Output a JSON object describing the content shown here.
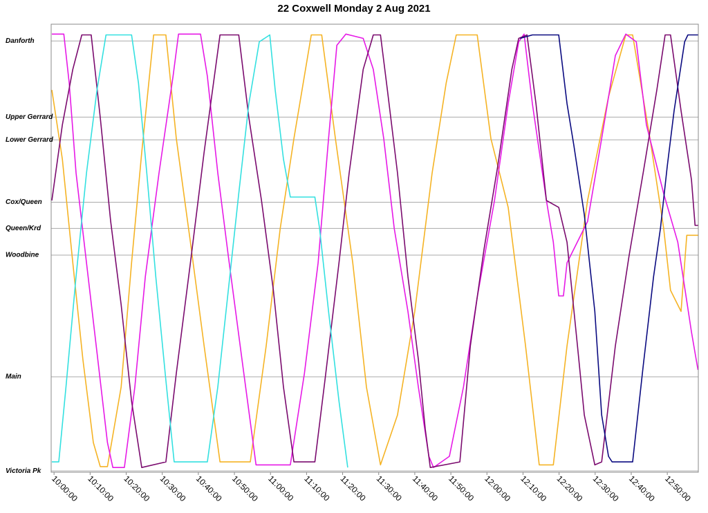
{
  "chart_data": {
    "type": "line",
    "title": "22 Coxwell Monday 2 Aug 2021",
    "xlim": [
      599.2,
      778.6
    ],
    "ylim": [
      -0.3,
      103.9
    ],
    "grid": true,
    "xticks": [
      {
        "value": 600,
        "label": "10:00:00"
      },
      {
        "value": 610,
        "label": "10:10:00"
      },
      {
        "value": 620,
        "label": "10:20:00"
      },
      {
        "value": 630,
        "label": "10:30:00"
      },
      {
        "value": 640,
        "label": "10:40:00"
      },
      {
        "value": 650,
        "label": "10:50:00"
      },
      {
        "value": 660,
        "label": "11:00:00"
      },
      {
        "value": 670,
        "label": "11:10:00"
      },
      {
        "value": 680,
        "label": "11:20:00"
      },
      {
        "value": 690,
        "label": "11:30:00"
      },
      {
        "value": 700,
        "label": "11:40:00"
      },
      {
        "value": 710,
        "label": "11:50:00"
      },
      {
        "value": 720,
        "label": "12:00:00"
      },
      {
        "value": 730,
        "label": "12:10:00"
      },
      {
        "value": 740,
        "label": "12:20:00"
      },
      {
        "value": 750,
        "label": "12:30:00"
      },
      {
        "value": 760,
        "label": "12:40:00"
      },
      {
        "value": 770,
        "label": "12:50:00"
      }
    ],
    "yticks": [
      {
        "value": 100,
        "label": "Danforth"
      },
      {
        "value": 82.3,
        "label": "Upper Gerrard"
      },
      {
        "value": 77.0,
        "label": "Lower Gerrard"
      },
      {
        "value": 62.5,
        "label": "Cox/Queen"
      },
      {
        "value": 56.4,
        "label": "Queen/Krd"
      },
      {
        "value": 50.2,
        "label": "Woodbine"
      },
      {
        "value": 21.9,
        "label": "Main"
      },
      {
        "value": 0,
        "label": "Victoria Pk"
      }
    ],
    "series": [
      {
        "color": "#f5b324",
        "x": [
          599.4,
          602.3,
          605.2,
          608.0,
          610.9,
          612.8,
          614.8,
          618.6,
          621.5,
          624.3,
          627.6,
          631.0,
          633.9,
          637.8,
          641.6,
          646.0,
          654.4,
          658.8,
          662.7,
          666.5,
          671.3,
          674.2,
          678.0,
          682.8,
          686.6,
          690.5,
          695.2,
          700.0,
          704.8,
          708.7,
          711.5,
          717.3,
          721.1,
          725.9,
          730.7,
          734.5,
          738.4,
          742.2,
          747.9,
          753.7,
          758.5,
          760.4,
          765.2,
          769.0,
          770.9,
          773.8,
          775.4,
          778.5
        ],
        "values": [
          88.6,
          72.5,
          48.4,
          25.9,
          6.6,
          1.0,
          1.0,
          19.5,
          48.4,
          74.1,
          101.4,
          101.4,
          77.3,
          53.2,
          29.1,
          2.1,
          2.1,
          29.1,
          56.4,
          77.3,
          101.4,
          101.4,
          77.3,
          48.4,
          19.5,
          1.4,
          13.0,
          37.1,
          69.3,
          90.2,
          101.4,
          101.4,
          77.3,
          61.3,
          29.1,
          1.4,
          1.4,
          29.1,
          62.9,
          87.0,
          101.4,
          101.4,
          77.3,
          56.4,
          42.0,
          37.1,
          54.8,
          54.8
        ]
      },
      {
        "color": "#e619e6",
        "x": [
          599.4,
          602.7,
          604.2,
          606.1,
          609.0,
          611.9,
          614.8,
          616.3,
          619.5,
          622.4,
          625.3,
          629.1,
          633.0,
          634.5,
          640.6,
          642.5,
          645.4,
          648.3,
          652.1,
          656.0,
          665.5,
          669.4,
          673.2,
          676.1,
          678.4,
          680.9,
          685.7,
          688.5,
          691.4,
          694.3,
          698.1,
          701.0,
          703.9,
          705.2,
          709.6,
          713.5,
          717.3,
          722.1,
          725.9,
          728.8,
          730.3,
          732.6,
          736.5,
          738.4,
          739.9,
          741.2,
          742.2,
          747.9,
          751.8,
          755.6,
          758.5,
          761.4,
          764.2,
          769.0,
          772.9,
          776.7,
          778.5
        ],
        "values": [
          101.6,
          101.6,
          90.2,
          69.3,
          48.4,
          27.5,
          6.6,
          0.8,
          0.8,
          19.5,
          45.2,
          69.3,
          91.8,
          101.6,
          101.6,
          91.8,
          69.3,
          50.0,
          25.9,
          1.4,
          1.4,
          22.7,
          48.4,
          77.3,
          99.0,
          101.6,
          100.6,
          93.4,
          77.3,
          56.4,
          37.1,
          19.5,
          3.4,
          0.8,
          3.4,
          19.5,
          40.4,
          62.9,
          85.4,
          99.8,
          101.6,
          85.4,
          62.9,
          53.2,
          40.7,
          40.7,
          48.4,
          58.0,
          77.3,
          96.6,
          101.6,
          99.8,
          80.5,
          64.5,
          53.2,
          32.3,
          23.5
        ]
      },
      {
        "color": "#7a0a6e",
        "x": [
          599.4,
          602.3,
          605.2,
          607.7,
          610.3,
          612.8,
          615.7,
          618.6,
          621.5,
          624.3,
          631.0,
          633.9,
          637.8,
          641.6,
          646.0,
          651.2,
          654.0,
          657.5,
          660.8,
          663.6,
          666.5,
          672.3,
          675.1,
          679.0,
          681.8,
          685.7,
          688.5,
          690.5,
          692.4,
          695.2,
          698.1,
          701.0,
          702.9,
          704.3,
          712.5,
          715.4,
          719.2,
          723.0,
          726.9,
          728.8,
          731.1,
          733.6,
          736.5,
          739.9,
          742.2,
          745.1,
          747.0,
          749.9,
          751.8,
          755.6,
          759.4,
          763.3,
          767.1,
          769.4,
          770.9,
          773.8,
          776.7,
          777.7,
          778.5
        ],
        "values": [
          62.9,
          80.5,
          93.4,
          101.4,
          101.4,
          82.2,
          58.0,
          38.7,
          16.2,
          0.8,
          2.1,
          22.7,
          48.4,
          74.1,
          101.4,
          101.4,
          82.2,
          62.9,
          42.0,
          19.5,
          2.1,
          2.1,
          21.1,
          48.4,
          69.3,
          93.4,
          101.4,
          101.4,
          88.6,
          69.3,
          45.2,
          25.9,
          9.8,
          0.8,
          2.1,
          29.1,
          51.6,
          70.9,
          93.4,
          100.6,
          101.4,
          85.4,
          62.9,
          61.3,
          53.2,
          29.1,
          13.0,
          1.4,
          2.1,
          29.1,
          50.0,
          69.3,
          88.6,
          101.4,
          101.4,
          83.8,
          67.7,
          57.1,
          57.1
        ]
      },
      {
        "color": "#33e0e0",
        "x": [
          599.4,
          601.3,
          603.3,
          606.1,
          609.0,
          611.9,
          614.4,
          621.5,
          623.4,
          625.7,
          628.2,
          631.0,
          633.3,
          642.5,
          645.4,
          648.3,
          651.2,
          654.0,
          656.9,
          659.8,
          661.3,
          663.6,
          665.5,
          672.3,
          673.6,
          676.1,
          679.0,
          681.4
        ],
        "values": [
          2.1,
          2.1,
          19.5,
          45.2,
          69.3,
          88.6,
          101.4,
          101.4,
          90.2,
          69.3,
          45.2,
          21.1,
          2.1,
          2.1,
          19.5,
          42.0,
          64.5,
          85.4,
          99.8,
          101.4,
          88.6,
          72.5,
          63.7,
          63.7,
          56.4,
          37.1,
          16.2,
          0.8
        ]
      },
      {
        "color": "#0a0a80",
        "x": [
          729.2,
          732.6,
          739.9,
          742.2,
          744.1,
          747.0,
          749.9,
          751.8,
          753.7,
          754.7,
          760.4,
          763.3,
          766.2,
          768.1,
          770.0,
          771.9,
          774.8,
          775.7,
          778.5
        ],
        "values": [
          100.6,
          101.4,
          101.4,
          85.4,
          75.7,
          59.6,
          37.1,
          13.0,
          3.4,
          2.1,
          2.1,
          24.3,
          45.2,
          56.4,
          70.9,
          83.8,
          99.8,
          101.4,
          101.4
        ]
      }
    ]
  }
}
